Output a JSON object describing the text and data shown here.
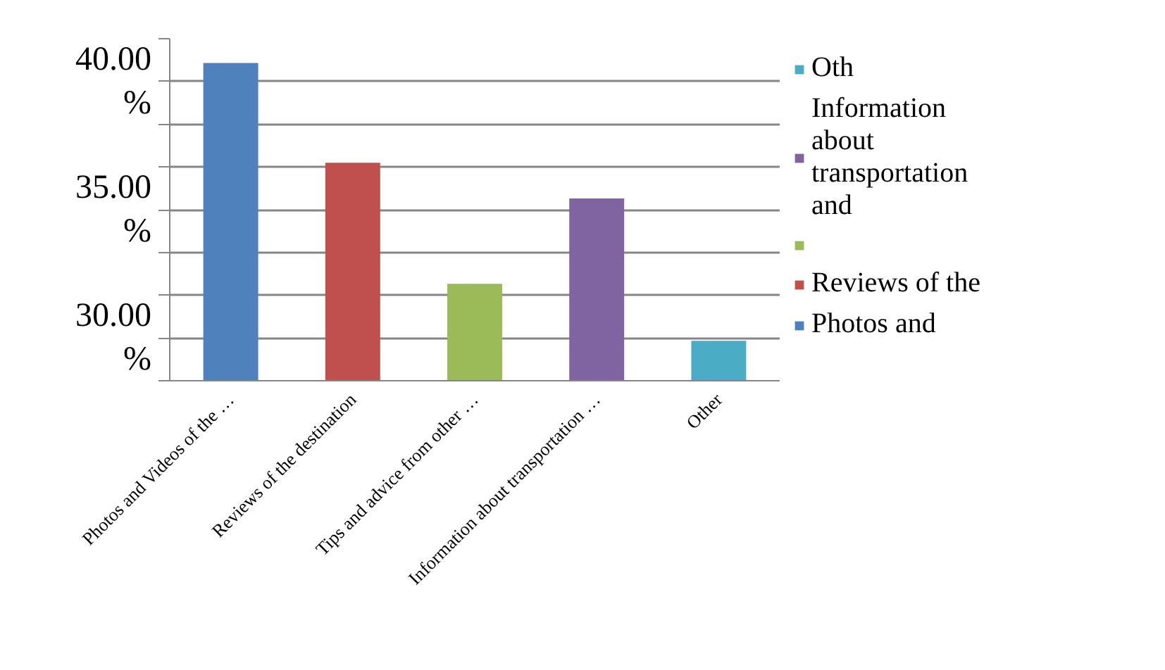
{
  "chart_data": {
    "type": "bar",
    "categories": [
      "Photos and Videos of the …",
      "Reviews of the destination",
      "Tips and advice from other …",
      "Information about transportation …",
      "Other"
    ],
    "series": [
      {
        "name": "Photos and",
        "color": "#4f81bd",
        "values": [
          40.72,
          null,
          null,
          null,
          null
        ]
      },
      {
        "name": "Reviews of the",
        "color": "#c0504d",
        "values": [
          null,
          36.83,
          null,
          null,
          null
        ]
      },
      {
        "color": "#9bbb59",
        "values": [
          null,
          null,
          32.11,
          null,
          null
        ]
      },
      {
        "name": "Information about transportation and",
        "color": "#8064a2",
        "values": [
          null,
          null,
          null,
          35.44,
          null
        ]
      },
      {
        "name": "Oth",
        "color": "#4bacc6",
        "values": [
          null,
          null,
          null,
          null,
          29.89
        ]
      }
    ],
    "ylim": [
      28.33,
      41.67
    ],
    "yticks": [
      {
        "value": 28.33,
        "label": null
      },
      {
        "value": 30,
        "label": "30.00 %"
      },
      {
        "value": 31.67,
        "label": null
      },
      {
        "value": 33.33,
        "label": null
      },
      {
        "value": 35,
        "label": "35.00 %"
      },
      {
        "value": 36.67,
        "label": null
      },
      {
        "value": 38.33,
        "label": null
      },
      {
        "value": 40,
        "label": "40.00 %"
      },
      {
        "value": 41.67,
        "label": null
      }
    ],
    "grid": "y",
    "legend": "right"
  }
}
